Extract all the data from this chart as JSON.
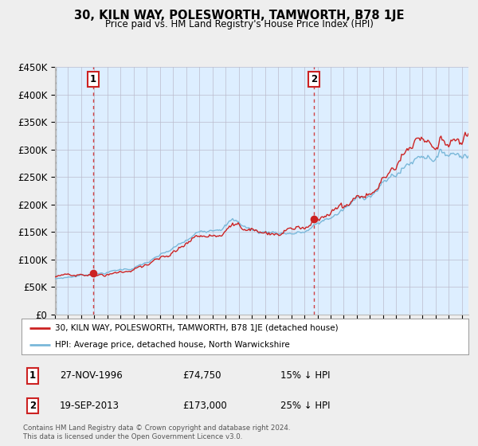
{
  "title": "30, KILN WAY, POLESWORTH, TAMWORTH, B78 1JE",
  "subtitle": "Price paid vs. HM Land Registry's House Price Index (HPI)",
  "ylim": [
    0,
    450000
  ],
  "yticks": [
    0,
    50000,
    100000,
    150000,
    200000,
    250000,
    300000,
    350000,
    400000,
    450000
  ],
  "ytick_labels": [
    "£0",
    "£50K",
    "£100K",
    "£150K",
    "£200K",
    "£250K",
    "£300K",
    "£350K",
    "£400K",
    "£450K"
  ],
  "hpi_color": "#7ab8d9",
  "price_color": "#cc2222",
  "sale1_date": 1996.9,
  "sale1_price": 74750,
  "sale1_label": "1",
  "sale1_text": "27-NOV-1996",
  "sale1_amount": "£74,750",
  "sale1_hpi": "15% ↓ HPI",
  "sale2_date": 2013.72,
  "sale2_price": 173000,
  "sale2_label": "2",
  "sale2_text": "19-SEP-2013",
  "sale2_amount": "£173,000",
  "sale2_hpi": "25% ↓ HPI",
  "xmin": 1994.0,
  "xmax": 2025.5,
  "legend_label1": "30, KILN WAY, POLESWORTH, TAMWORTH, B78 1JE (detached house)",
  "legend_label2": "HPI: Average price, detached house, North Warwickshire",
  "footer": "Contains HM Land Registry data © Crown copyright and database right 2024.\nThis data is licensed under the Open Government Licence v3.0.",
  "background_color": "#eeeeee",
  "plot_bg_color": "#ddeeff"
}
